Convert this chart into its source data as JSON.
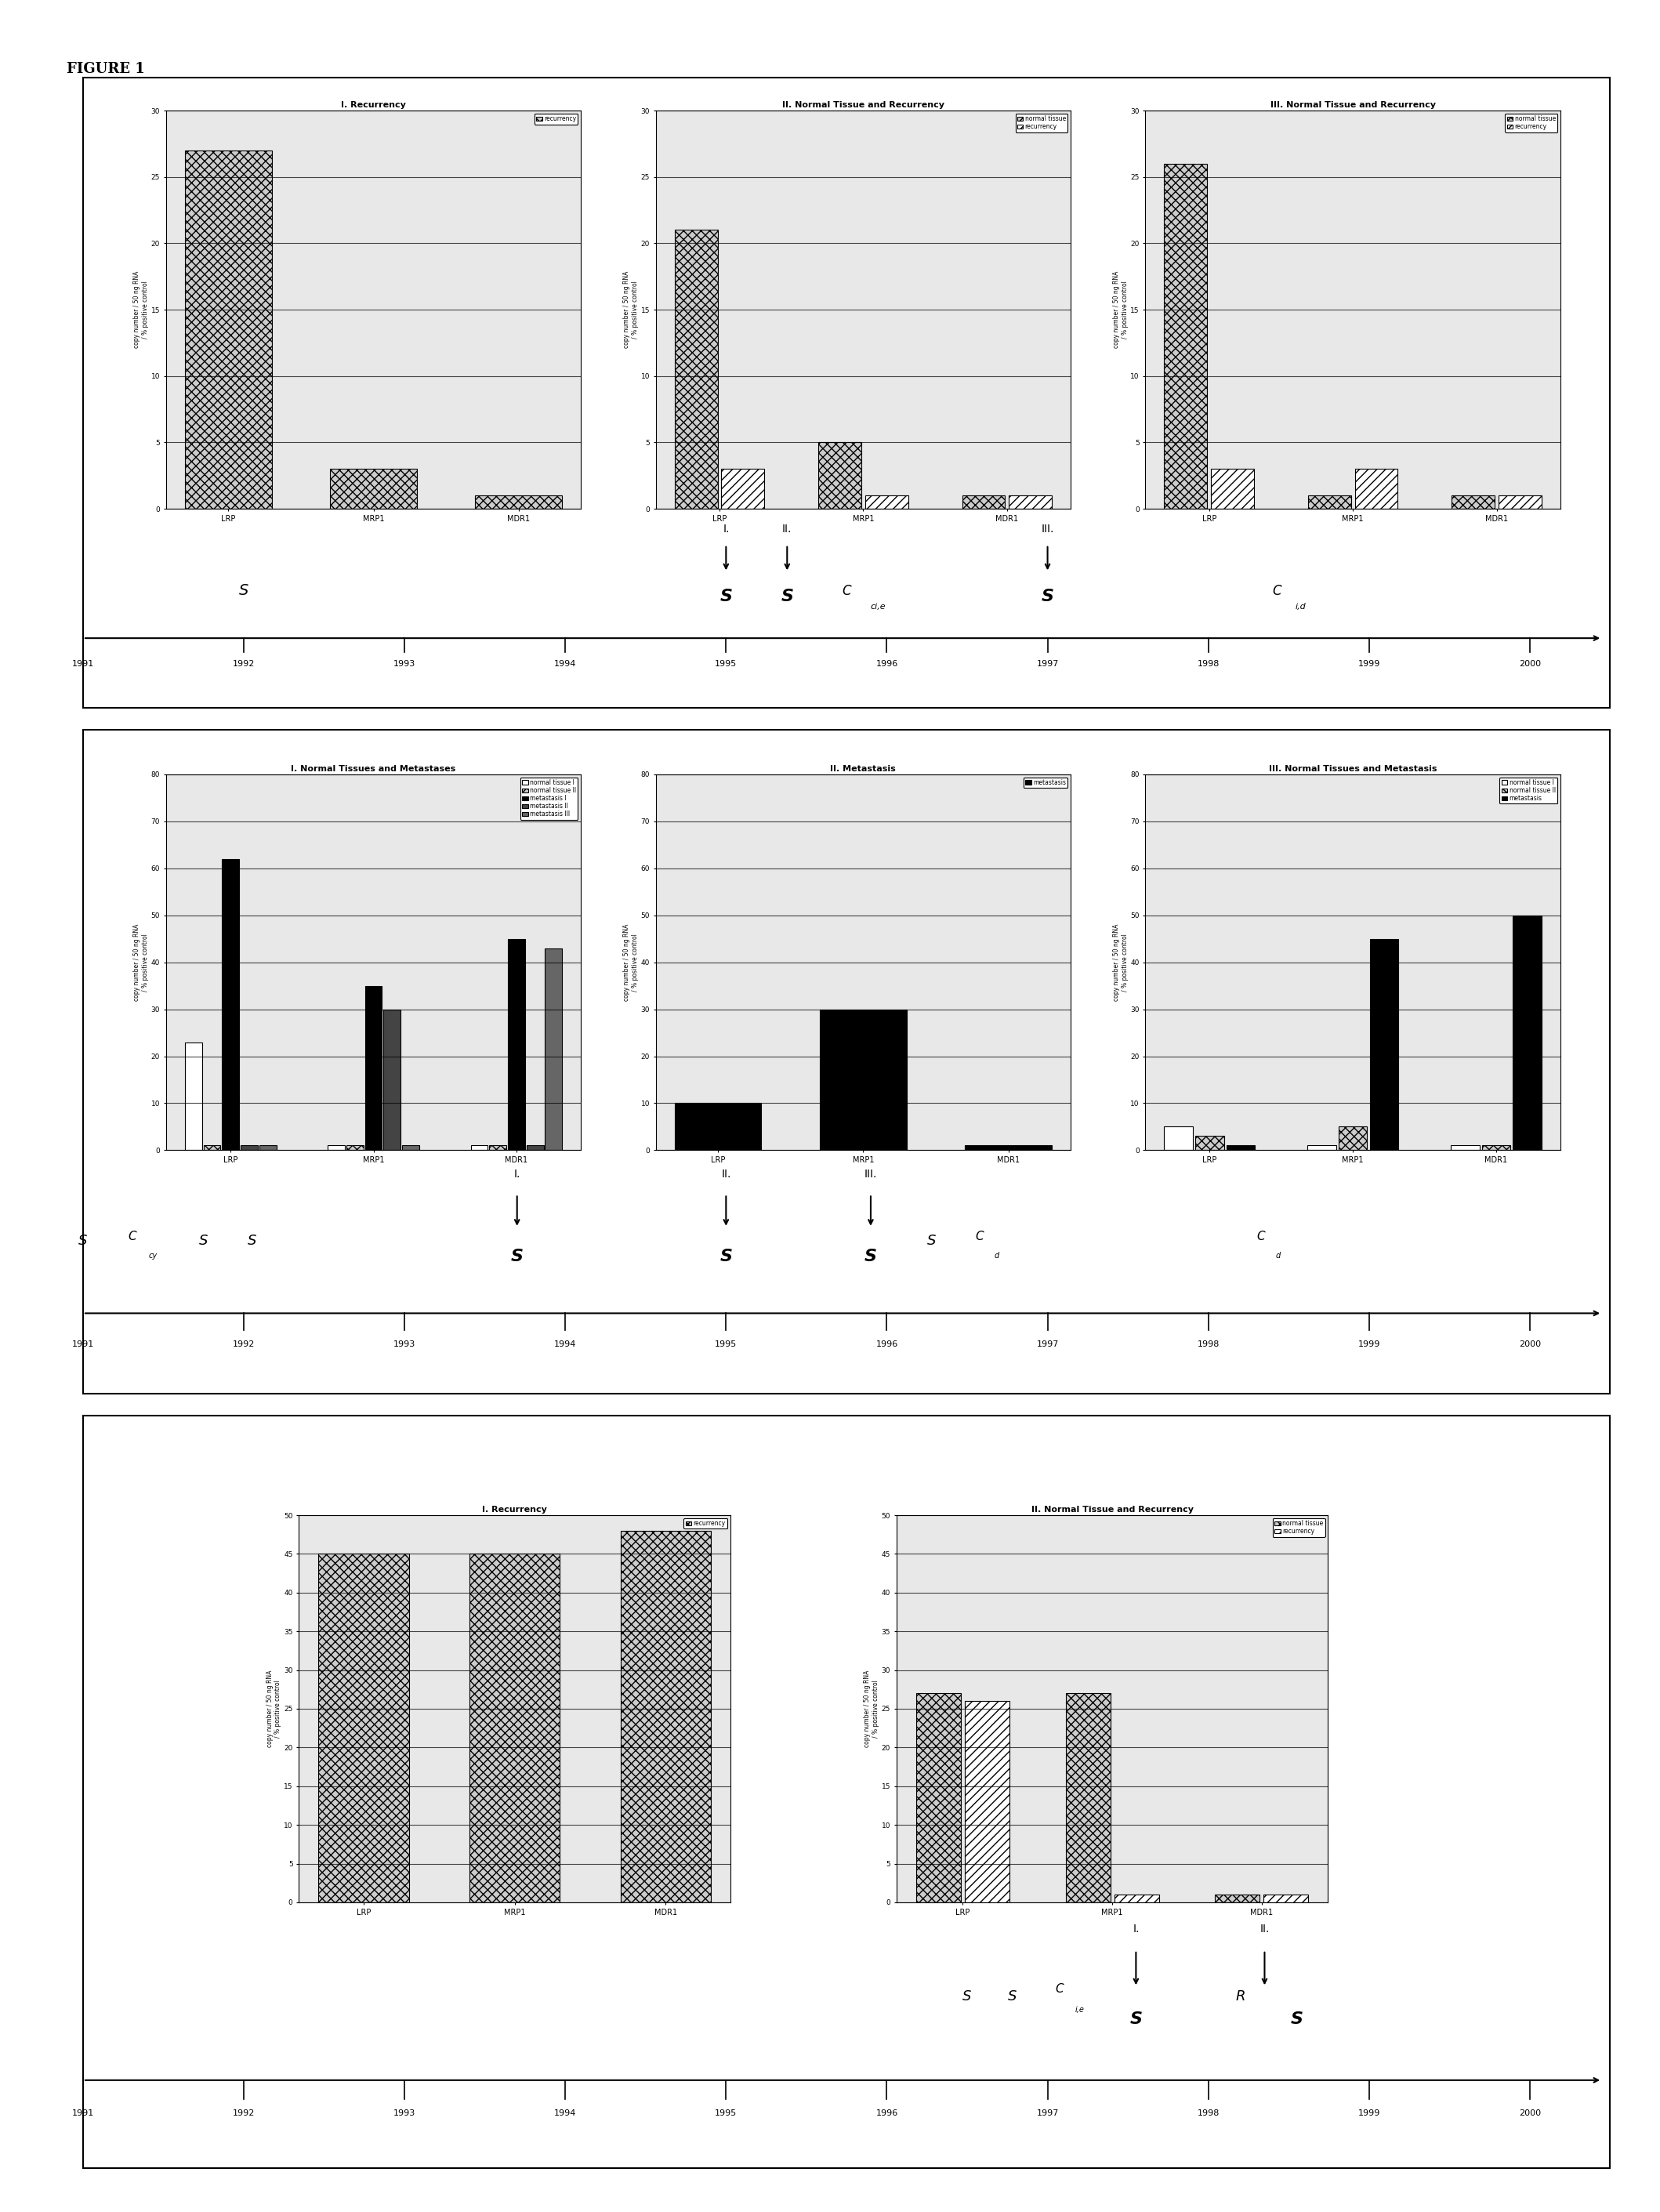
{
  "figure_title": "FIGURE 1",
  "panel1": {
    "charts": [
      {
        "title": "I. Recurrency",
        "categories": [
          "LRP",
          "MRP1",
          "MDR1"
        ],
        "series": [
          {
            "label": "recurrency",
            "values": [
              27,
              3,
              1
            ],
            "hatch": "xxx",
            "facecolor": "#cccccc",
            "edgecolor": "black"
          }
        ],
        "ylim": [
          0,
          30
        ],
        "yticks": [
          0,
          5,
          10,
          15,
          20,
          25,
          30
        ]
      },
      {
        "title": "II. Normal Tissue and Recurrency",
        "categories": [
          "LRP",
          "MRP1",
          "MDR1"
        ],
        "series": [
          {
            "label": "normal tissue",
            "values": [
              21,
              5,
              1
            ],
            "hatch": "xxx",
            "facecolor": "#cccccc",
            "edgecolor": "black"
          },
          {
            "label": "recurrency",
            "values": [
              3,
              1,
              1
            ],
            "hatch": "///",
            "facecolor": "white",
            "edgecolor": "black"
          }
        ],
        "ylim": [
          0,
          30
        ],
        "yticks": [
          0,
          5,
          10,
          15,
          20,
          25,
          30
        ]
      },
      {
        "title": "III. Normal Tissue and Recurrency",
        "categories": [
          "LRP",
          "MRP1",
          "MDR1"
        ],
        "series": [
          {
            "label": "normal tissue",
            "values": [
              26,
              1,
              1
            ],
            "hatch": "xxx",
            "facecolor": "#cccccc",
            "edgecolor": "black"
          },
          {
            "label": "recurrency",
            "values": [
              3,
              3,
              1
            ],
            "hatch": "///",
            "facecolor": "white",
            "edgecolor": "black"
          }
        ],
        "ylim": [
          0,
          30
        ],
        "yticks": [
          0,
          5,
          10,
          15,
          20,
          25,
          30
        ]
      }
    ]
  },
  "panel2": {
    "charts": [
      {
        "title": "I. Normal Tissues and Metastases",
        "categories": [
          "LRP",
          "MRP1",
          "MDR1"
        ],
        "series": [
          {
            "label": "normal tissue I",
            "values": [
              23,
              1,
              1
            ],
            "hatch": "",
            "facecolor": "white",
            "edgecolor": "black"
          },
          {
            "label": "normal tissue II",
            "values": [
              1,
              1,
              1
            ],
            "hatch": "xxx",
            "facecolor": "#cccccc",
            "edgecolor": "black"
          },
          {
            "label": "metastasis I",
            "values": [
              62,
              35,
              45
            ],
            "hatch": "",
            "facecolor": "black",
            "edgecolor": "black"
          },
          {
            "label": "metastasis II",
            "values": [
              1,
              30,
              1
            ],
            "hatch": "",
            "facecolor": "#444444",
            "edgecolor": "black"
          },
          {
            "label": "metastasis III",
            "values": [
              1,
              1,
              43
            ],
            "hatch": "",
            "facecolor": "#666666",
            "edgecolor": "black"
          }
        ],
        "ylim": [
          0,
          80
        ],
        "yticks": [
          0,
          10,
          20,
          30,
          40,
          50,
          60,
          70,
          80
        ]
      },
      {
        "title": "II. Metastasis",
        "categories": [
          "LRP",
          "MRP1",
          "MDR1"
        ],
        "series": [
          {
            "label": "metastasis",
            "values": [
              10,
              30,
              1
            ],
            "hatch": "",
            "facecolor": "black",
            "edgecolor": "black"
          }
        ],
        "ylim": [
          0,
          80
        ],
        "yticks": [
          0,
          10,
          20,
          30,
          40,
          50,
          60,
          70,
          80
        ]
      },
      {
        "title": "III. Normal Tissues and Metastasis",
        "categories": [
          "LRP",
          "MRP1",
          "MDR1"
        ],
        "series": [
          {
            "label": "normal tissue I",
            "values": [
              5,
              1,
              1
            ],
            "hatch": "",
            "facecolor": "white",
            "edgecolor": "black"
          },
          {
            "label": "normal tissue II",
            "values": [
              3,
              5,
              1
            ],
            "hatch": "xxx",
            "facecolor": "#cccccc",
            "edgecolor": "black"
          },
          {
            "label": "metastasis",
            "values": [
              1,
              45,
              50
            ],
            "hatch": "",
            "facecolor": "black",
            "edgecolor": "black"
          }
        ],
        "ylim": [
          0,
          80
        ],
        "yticks": [
          0,
          10,
          20,
          30,
          40,
          50,
          60,
          70,
          80
        ]
      }
    ]
  },
  "panel3": {
    "charts": [
      {
        "title": "I. Recurrency",
        "categories": [
          "LRP",
          "MRP1",
          "MDR1"
        ],
        "series": [
          {
            "label": "recurrency",
            "values": [
              45,
              45,
              48
            ],
            "hatch": "xxx",
            "facecolor": "#cccccc",
            "edgecolor": "black"
          }
        ],
        "ylim": [
          0,
          50
        ],
        "yticks": [
          0,
          5,
          10,
          15,
          20,
          25,
          30,
          35,
          40,
          45,
          50
        ]
      },
      {
        "title": "II. Normal Tissue and Recurrency",
        "categories": [
          "LRP",
          "MRP1",
          "MDR1"
        ],
        "series": [
          {
            "label": "normal tissue",
            "values": [
              27,
              27,
              1
            ],
            "hatch": "xxx",
            "facecolor": "#cccccc",
            "edgecolor": "black"
          },
          {
            "label": "recurrency",
            "values": [
              26,
              1,
              1
            ],
            "hatch": "///",
            "facecolor": "white",
            "edgecolor": "black"
          }
        ],
        "ylim": [
          0,
          50
        ],
        "yticks": [
          0,
          5,
          10,
          15,
          20,
          25,
          30,
          35,
          40,
          45,
          50
        ]
      }
    ]
  },
  "bg_hatch_color": "#dddddd"
}
